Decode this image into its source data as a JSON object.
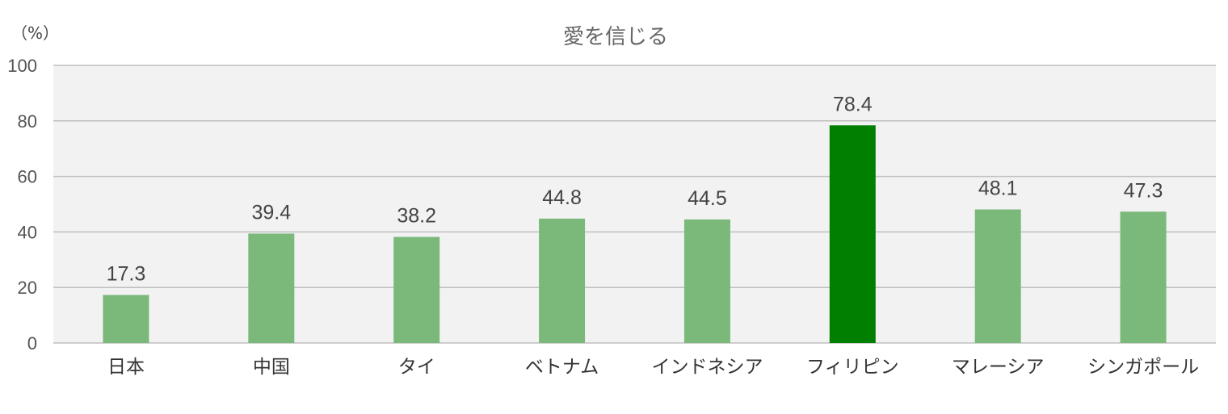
{
  "chart_data": {
    "type": "bar",
    "title": "愛を信じる",
    "unit_label": "（%）",
    "categories": [
      "日本",
      "中国",
      "タイ",
      "ベトナム",
      "インドネシア",
      "フィリピン",
      "マレーシア",
      "シンガポール"
    ],
    "values": [
      17.3,
      39.4,
      38.2,
      44.8,
      44.5,
      78.4,
      48.1,
      47.3
    ],
    "data_labels": [
      "17.3",
      "39.4",
      "38.2",
      "44.8",
      "44.5",
      "78.4",
      "48.1",
      "47.3"
    ],
    "yticks": [
      "0",
      "20",
      "40",
      "60",
      "80",
      "100"
    ],
    "ylim": [
      0,
      100
    ],
    "grid": true,
    "highlight_index": 5,
    "colors": {
      "bar": "#7ab97a",
      "highlight": "#007f00",
      "plot_background": "#f2f2f2",
      "gridline": "#bfbfbf"
    }
  }
}
